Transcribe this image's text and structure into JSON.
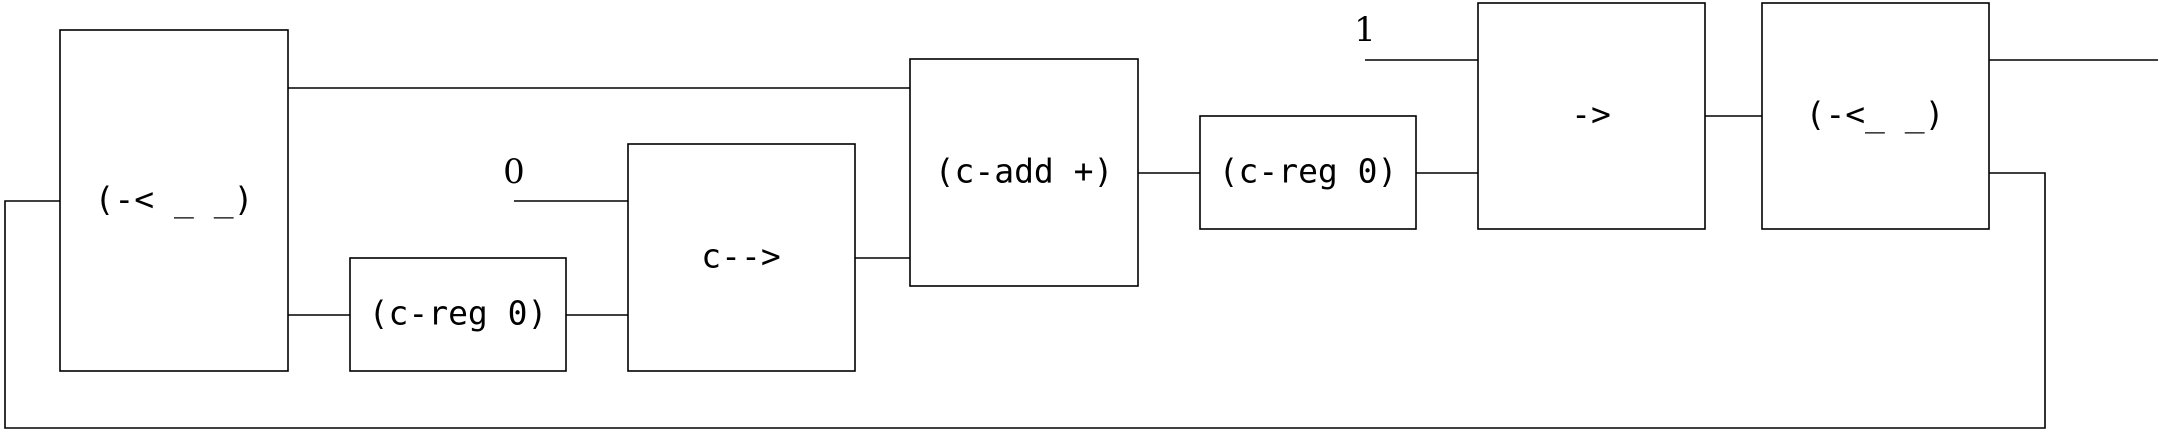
{
  "diagram": {
    "nodes": [
      {
        "id": "split-a",
        "label": "(-< _ _)"
      },
      {
        "id": "reg-a",
        "label": "(c-reg 0)"
      },
      {
        "id": "arrow-a",
        "label": "c-->"
      },
      {
        "id": "add",
        "label": "(c-add +)"
      },
      {
        "id": "reg-b",
        "label": "(c-reg 0)"
      },
      {
        "id": "arrow-b",
        "label": "->"
      },
      {
        "id": "split-b",
        "label": "(-<_ _)"
      }
    ],
    "constants": {
      "zero": "0",
      "one": "1"
    },
    "edges": [
      {
        "from": "split-a",
        "to": "add"
      },
      {
        "from": "split-a",
        "to": "reg-a"
      },
      {
        "from": "reg-a",
        "to": "arrow-a"
      },
      {
        "from": "zero",
        "to": "arrow-a"
      },
      {
        "from": "arrow-a",
        "to": "add"
      },
      {
        "from": "add",
        "to": "reg-b"
      },
      {
        "from": "reg-b",
        "to": "arrow-b"
      },
      {
        "from": "one",
        "to": "arrow-b"
      },
      {
        "from": "arrow-b",
        "to": "split-b"
      },
      {
        "from": "split-b",
        "to": "output"
      },
      {
        "from": "split-b",
        "to": "split-a",
        "kind": "feedback"
      }
    ]
  }
}
